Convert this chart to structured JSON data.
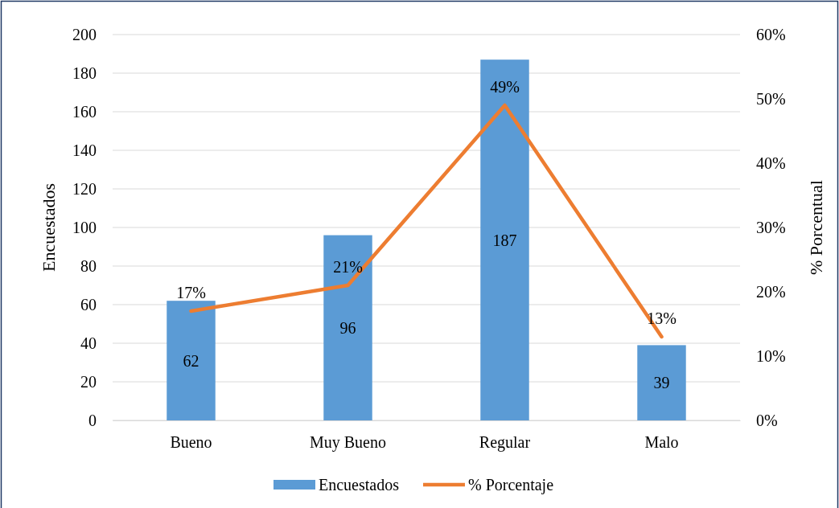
{
  "chart_data": {
    "type": "bar",
    "categories": [
      "Bueno",
      "Muy Bueno",
      "Regular",
      "Malo"
    ],
    "ylabel": "Encuestados",
    "y2label": "% Porcentual",
    "ylim": [
      0,
      200
    ],
    "yticks": [
      0,
      20,
      40,
      60,
      80,
      100,
      120,
      140,
      160,
      180,
      200
    ],
    "y2lim": [
      0,
      60
    ],
    "y2ticks": [
      {
        "value": 0,
        "label": "0%"
      },
      {
        "value": 10,
        "label": "10%"
      },
      {
        "value": 20,
        "label": "20%"
      },
      {
        "value": 30,
        "label": "30%"
      },
      {
        "value": 40,
        "label": "40%"
      },
      {
        "value": 50,
        "label": "50%"
      },
      {
        "value": 60,
        "label": "60%"
      }
    ],
    "grid": "y",
    "legend": "bottom",
    "series": [
      {
        "name": "Encuestados",
        "color": "#5b9bd5",
        "values": [
          62,
          96,
          187,
          39
        ],
        "value_labels": [
          "62",
          "96",
          "187",
          "39"
        ]
      },
      {
        "name": "% Porcentaje",
        "type": "line",
        "axis": "y2",
        "color": "#ed7d31",
        "values": [
          17,
          21,
          49,
          13
        ],
        "value_labels": [
          "17%",
          "21%",
          "49%",
          "13%"
        ],
        "marker": "none"
      }
    ]
  }
}
